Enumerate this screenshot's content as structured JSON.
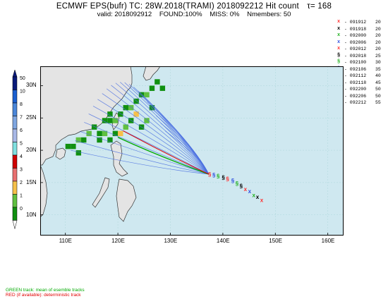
{
  "header": {
    "title": "ECMWF EPS(bufr) TC: 28W.2018(TRAMI) 2018092212 Hit count",
    "tau_label": "τ= 168",
    "valid": "valid: 2018092912",
    "found": "FOUND:100%",
    "miss": "MISS:  0%",
    "nmembers": "Nmembers: 50"
  },
  "colorbar": {
    "labels": [
      "50",
      "10",
      "8",
      "7",
      "6",
      "5",
      "4",
      "3",
      "2",
      "1",
      "0"
    ],
    "colors": [
      "#0a1a7a",
      "#1a5fd0",
      "#4a86d8",
      "#7fa6e0",
      "#a8b8e6",
      "#80e0e0",
      "#d00000",
      "#e87070",
      "#f6c04a",
      "#60c040",
      "#109010"
    ]
  },
  "legend": [
    {
      "date": "091912",
      "value": "20",
      "symbol": "x",
      "color": "#ff3030"
    },
    {
      "date": "091918",
      "value": "20",
      "symbol": "x",
      "color": "#000000"
    },
    {
      "date": "092000",
      "value": "20",
      "symbol": "x",
      "color": "#20b020"
    },
    {
      "date": "092006",
      "value": "20",
      "symbol": "x",
      "color": "#3050e0"
    },
    {
      "date": "092012",
      "value": "20",
      "symbol": "x",
      "color": "#ff3030"
    },
    {
      "date": "092018",
      "value": "25",
      "symbol": "§",
      "color": "#000000"
    },
    {
      "date": "092100",
      "value": "30",
      "symbol": "§",
      "color": "#20b020"
    },
    {
      "date": "092106",
      "value": "35",
      "symbol": "§",
      "color": "#3050e0"
    },
    {
      "date": "092112",
      "value": "40",
      "symbol": "§",
      "color": "#ff3030"
    },
    {
      "date": "092118",
      "value": "45",
      "symbol": "§",
      "color": "#000000"
    },
    {
      "date": "092200",
      "value": "50",
      "symbol": "§",
      "color": "#20b020"
    },
    {
      "date": "092206",
      "value": "50",
      "symbol": "§",
      "color": "#3050e0"
    },
    {
      "date": "092212",
      "value": "55",
      "symbol": "§",
      "color": "#ff3030"
    }
  ],
  "map": {
    "lat_labels": [
      "30N",
      "25N",
      "20N",
      "15N",
      "10N"
    ],
    "lon_labels": [
      "110E",
      "120E",
      "130E",
      "140E",
      "150E",
      "160E"
    ],
    "ocean_color": "#cfe8f0",
    "land_color": "#e4e4e4",
    "coast_color": "#333333"
  },
  "footer": {
    "green_note": "GREEN track: mean of esemble tracks",
    "red_note": "RED (if available): deterministic track"
  }
}
